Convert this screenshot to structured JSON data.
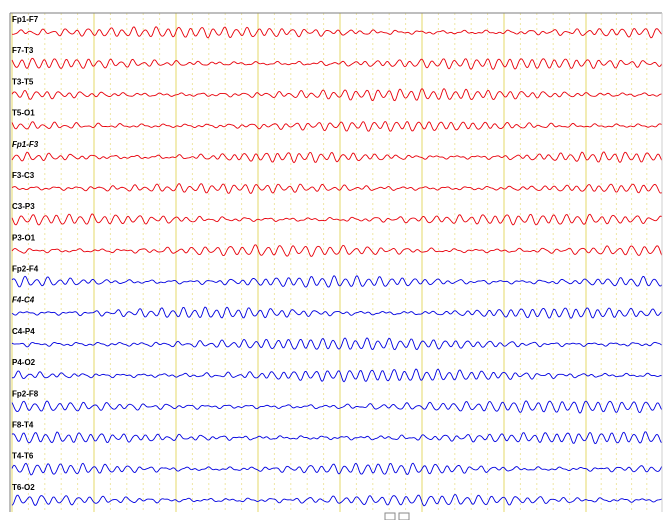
{
  "viewer": {
    "background": "#ffffff",
    "colors": {
      "left_hemisphere_trace": "#e8000b",
      "right_hemisphere_trace": "#0000e0",
      "second_gridline": "#e6d96a",
      "subdivision_gridline": "#efe7a6",
      "channel_border": "#7d7d7d",
      "label_text": "#000000",
      "channel_label_emphasis_style": "italic"
    },
    "emphasized_channels": [
      "Fp1-F3",
      "F4-C4"
    ],
    "footer_icons": [
      "square-marker-icon",
      "square-marker-icon"
    ]
  },
  "channels": [
    {
      "label": "Fp1-F7",
      "hemisphere": "left"
    },
    {
      "label": "F7-T3",
      "hemisphere": "left"
    },
    {
      "label": "T3-T5",
      "hemisphere": "left"
    },
    {
      "label": "T5-O1",
      "hemisphere": "left"
    },
    {
      "label": "Fp1-F3",
      "hemisphere": "left"
    },
    {
      "label": "F3-C3",
      "hemisphere": "left"
    },
    {
      "label": "C3-P3",
      "hemisphere": "left"
    },
    {
      "label": "P3-O1",
      "hemisphere": "left"
    },
    {
      "label": "Fp2-F4",
      "hemisphere": "right"
    },
    {
      "label": "F4-C4",
      "hemisphere": "right"
    },
    {
      "label": "C4-P4",
      "hemisphere": "right"
    },
    {
      "label": "P4-O2",
      "hemisphere": "right"
    },
    {
      "label": "Fp2-F8",
      "hemisphere": "right"
    },
    {
      "label": "F8-T4",
      "hemisphere": "right"
    },
    {
      "label": "T4-T6",
      "hemisphere": "right"
    },
    {
      "label": "T6-O2",
      "hemisphere": "right"
    }
  ]
}
